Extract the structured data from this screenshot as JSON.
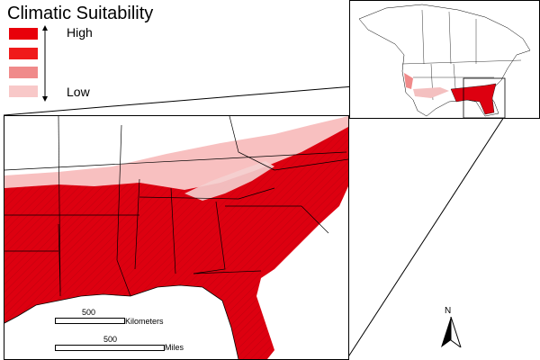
{
  "legend": {
    "title": "Climatic Suitability",
    "high_label": "High",
    "low_label": "Low",
    "classes": [
      {
        "color": "#e8000a"
      },
      {
        "color": "#f01a1a"
      },
      {
        "color": "#f08a8a"
      },
      {
        "color": "#f8c8c8"
      }
    ]
  },
  "scale_bar": {
    "km_value": "500",
    "km_unit": "Kilometers",
    "mi_value": "500",
    "mi_unit": "Miles"
  },
  "north_arrow": {
    "label": "N"
  },
  "colors": {
    "high": "#dd0010",
    "low": "#f8c0c0",
    "boundary": "#000000"
  }
}
